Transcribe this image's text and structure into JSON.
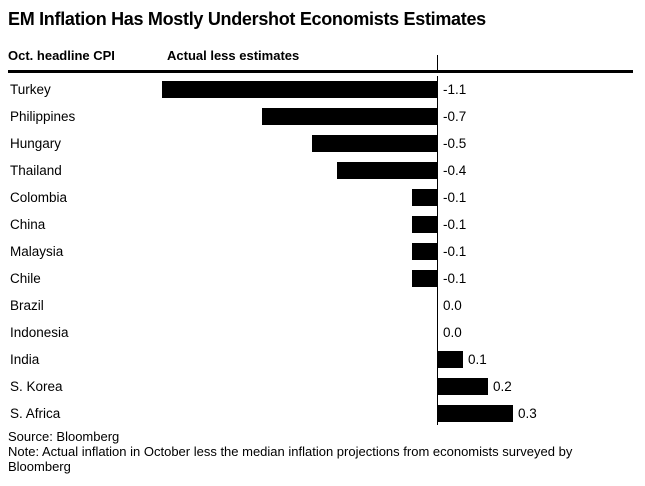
{
  "title": "EM Inflation Has Mostly Undershot Economists Estimates",
  "header": {
    "left_label": "Oct. headline CPI",
    "right_label": "Actual less estimates"
  },
  "chart_data": {
    "type": "bar",
    "orientation": "horizontal",
    "title": "EM Inflation Has Mostly Undershot Economists Estimates",
    "xlabel": "Actual less estimates",
    "ylabel": "Oct. headline CPI",
    "categories": [
      "Turkey",
      "Philippines",
      "Hungary",
      "Thailand",
      "Colombia",
      "China",
      "Malaysia",
      "Chile",
      "Brazil",
      "Indonesia",
      "India",
      "S. Korea",
      "S. Africa"
    ],
    "values": [
      -1.1,
      -0.7,
      -0.5,
      -0.4,
      -0.1,
      -0.1,
      -0.1,
      -0.1,
      0.0,
      0.0,
      0.1,
      0.2,
      0.3
    ],
    "xlim": [
      -1.2,
      0.5
    ],
    "grid": false,
    "zero_line": true,
    "legend": "none",
    "bar_color": "#000000"
  },
  "footer": {
    "source": "Source: Bloomberg",
    "note": "Note: Actual inflation in October less the median inflation projections from economists surveyed by Bloomberg"
  }
}
